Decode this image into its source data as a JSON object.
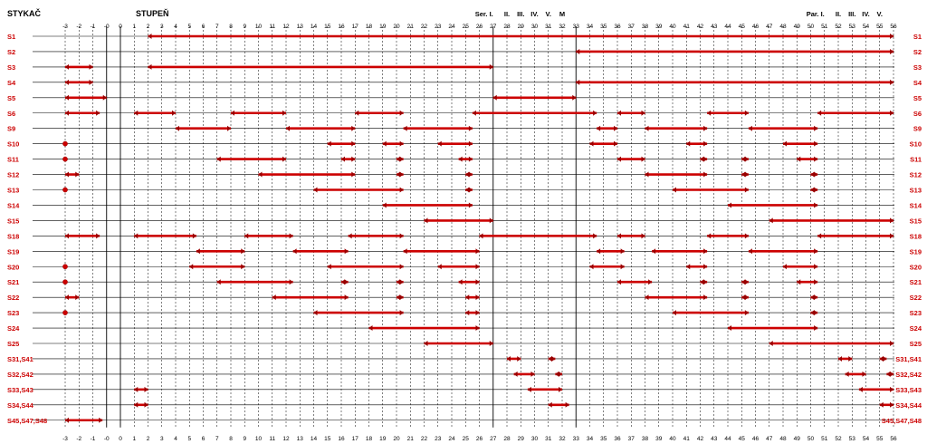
{
  "header": {
    "left_title": "STYKAČ",
    "mid_title": "STUPEŇ",
    "ser_labels": [
      "Ser. I.",
      "II.",
      "III.",
      "IV.",
      "V.",
      "M"
    ],
    "par_labels": [
      "Par. I.",
      "II.",
      "III.",
      "IV.",
      "V."
    ]
  },
  "colors": {
    "bar": "#cc0000",
    "bar_dark": "#990000",
    "label": "#cc0000",
    "grid": "#000000"
  },
  "steps": [
    "-3",
    "-2",
    "-1",
    "-0",
    "0",
    "1",
    "2",
    "3",
    "4",
    "5",
    "6",
    "7",
    "8",
    "9",
    "10",
    "11",
    "12",
    "13",
    "14",
    "15",
    "16",
    "17",
    "18",
    "19",
    "20",
    "21",
    "22",
    "23",
    "24",
    "25",
    "26",
    "27",
    "28",
    "29",
    "30",
    "31",
    "32",
    "33",
    "34",
    "35",
    "36",
    "37",
    "38",
    "39",
    "40",
    "41",
    "42",
    "43",
    "44",
    "45",
    "46",
    "47",
    "48",
    "49",
    "50",
    "51",
    "52",
    "53",
    "54",
    "55",
    "56"
  ],
  "contactors": [
    {
      "name": "S1",
      "segments": [
        [
          2,
          56
        ]
      ]
    },
    {
      "name": "S2",
      "segments": [
        [
          33,
          56
        ]
      ]
    },
    {
      "name": "S3",
      "segments": [
        [
          -3,
          -1
        ],
        [
          2,
          27
        ]
      ]
    },
    {
      "name": "S4",
      "segments": [
        [
          -3,
          -1
        ],
        [
          33,
          56
        ]
      ]
    },
    {
      "name": "S5",
      "segments": [
        [
          -3,
          0
        ],
        [
          27,
          33
        ]
      ]
    },
    {
      "name": "S6",
      "segments": [
        [
          -3,
          -0.5
        ],
        [
          1,
          4
        ],
        [
          8,
          12
        ],
        [
          17,
          20.5
        ],
        [
          25.5,
          34.5
        ],
        [
          36,
          38
        ],
        [
          42.5,
          45.5
        ],
        [
          50.5,
          56
        ]
      ]
    },
    {
      "name": "S9",
      "segments": [
        [
          4,
          8
        ],
        [
          12,
          17
        ],
        [
          20.5,
          25.5
        ],
        [
          34.5,
          36
        ],
        [
          38,
          42.5
        ],
        [
          45.5,
          50.5
        ]
      ]
    },
    {
      "name": "S10",
      "segments": [
        [
          -3,
          -3
        ],
        [
          15,
          17
        ],
        [
          19,
          20.5
        ],
        [
          23,
          25.5
        ],
        [
          34,
          36
        ],
        [
          41,
          42.5
        ],
        [
          48,
          50.5
        ]
      ]
    },
    {
      "name": "S11",
      "segments": [
        [
          -3,
          -3
        ],
        [
          7,
          12
        ],
        [
          16,
          17
        ],
        [
          20,
          20.5
        ],
        [
          24.5,
          25.5
        ],
        [
          36,
          38
        ],
        [
          42,
          42.5
        ],
        [
          45,
          45.5
        ],
        [
          49,
          50.5
        ]
      ]
    },
    {
      "name": "S12",
      "segments": [
        [
          -3,
          -2
        ],
        [
          10,
          17
        ],
        [
          20,
          20.5
        ],
        [
          25,
          25.5
        ],
        [
          38,
          42.5
        ],
        [
          45,
          45.5
        ],
        [
          50,
          50.5
        ]
      ]
    },
    {
      "name": "S13",
      "segments": [
        [
          -3,
          -3
        ],
        [
          14,
          20.5
        ],
        [
          25,
          25.5
        ],
        [
          40,
          45.5
        ],
        [
          50,
          50.5
        ]
      ]
    },
    {
      "name": "S14",
      "segments": [
        [
          19,
          25.5
        ],
        [
          44,
          50.5
        ]
      ]
    },
    {
      "name": "S15",
      "segments": [
        [
          22,
          27
        ],
        [
          47,
          56
        ]
      ]
    },
    {
      "name": "S18",
      "segments": [
        [
          -3,
          -0.5
        ],
        [
          1,
          5.5
        ],
        [
          9,
          12.5
        ],
        [
          16.5,
          20.5
        ],
        [
          26,
          34.5
        ],
        [
          36,
          38
        ],
        [
          42.5,
          45.5
        ],
        [
          50.5,
          56
        ]
      ]
    },
    {
      "name": "S19",
      "segments": [
        [
          5.5,
          9
        ],
        [
          12.5,
          16.5
        ],
        [
          20.5,
          26
        ],
        [
          34.5,
          36.5
        ],
        [
          38.5,
          42.5
        ],
        [
          45.5,
          50.5
        ]
      ]
    },
    {
      "name": "S20",
      "segments": [
        [
          -3,
          -3
        ],
        [
          5,
          9
        ],
        [
          15,
          20.5
        ],
        [
          23,
          26
        ],
        [
          34,
          36.5
        ],
        [
          41,
          42.5
        ],
        [
          48,
          50.5
        ]
      ]
    },
    {
      "name": "S21",
      "segments": [
        [
          -3,
          -3
        ],
        [
          7,
          12.5
        ],
        [
          16,
          16.5
        ],
        [
          20,
          20.5
        ],
        [
          24.5,
          26
        ],
        [
          36,
          38.5
        ],
        [
          42,
          42.5
        ],
        [
          45,
          45.5
        ],
        [
          49,
          50.5
        ]
      ]
    },
    {
      "name": "S22",
      "segments": [
        [
          -3,
          -2
        ],
        [
          11,
          16.5
        ],
        [
          20,
          20.5
        ],
        [
          25,
          26
        ],
        [
          38,
          42.5
        ],
        [
          45,
          45.5
        ],
        [
          50,
          50.5
        ]
      ]
    },
    {
      "name": "S23",
      "segments": [
        [
          -3,
          -3
        ],
        [
          14,
          20.5
        ],
        [
          25,
          26
        ],
        [
          40,
          45.5
        ],
        [
          50,
          50.5
        ]
      ]
    },
    {
      "name": "S24",
      "segments": [
        [
          18,
          26
        ],
        [
          44,
          50.5
        ]
      ]
    },
    {
      "name": "S25",
      "segments": [
        [
          22,
          27
        ],
        [
          47,
          56
        ]
      ]
    },
    {
      "name": "S31,S41",
      "segments": [
        [
          28,
          29
        ],
        [
          31,
          31.5
        ],
        [
          52,
          53
        ],
        [
          55,
          55.5
        ]
      ]
    },
    {
      "name": "S32,S42",
      "segments": [
        [
          28.5,
          30
        ],
        [
          31.5,
          32
        ],
        [
          52.5,
          54
        ],
        [
          55.5,
          56
        ]
      ]
    },
    {
      "name": "S33,S43",
      "segments": [
        [
          1,
          2
        ],
        [
          29.5,
          32
        ],
        [
          53.5,
          56
        ]
      ]
    },
    {
      "name": "S34,S44",
      "segments": [
        [
          1,
          2
        ],
        [
          31,
          32.5
        ],
        [
          55,
          56
        ]
      ]
    },
    {
      "name": "S45,S47,S48",
      "segments": [
        [
          -3,
          -0.3
        ]
      ]
    }
  ]
}
